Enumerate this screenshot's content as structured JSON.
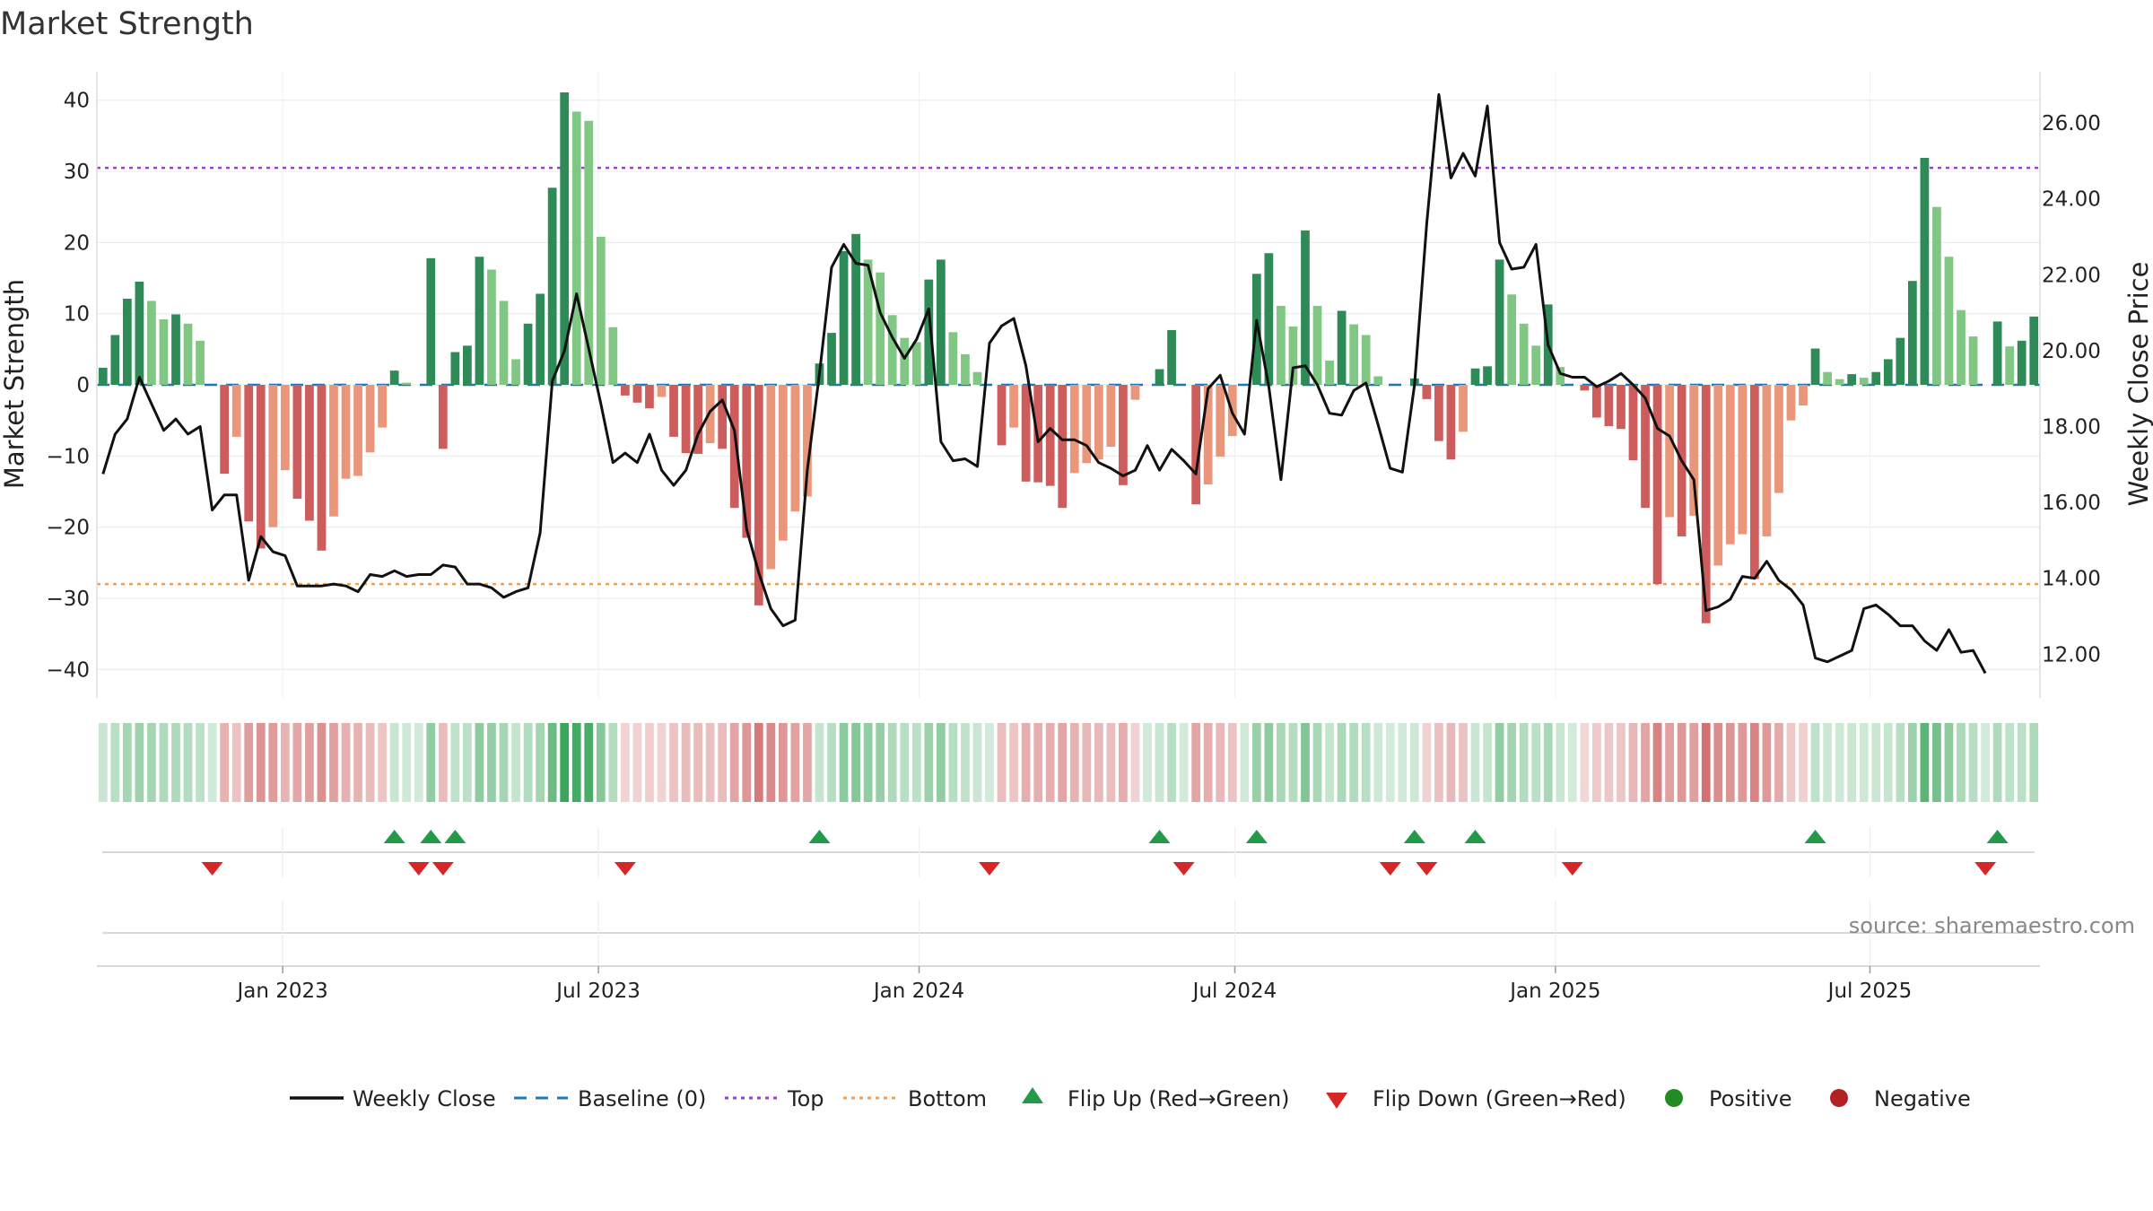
{
  "chart_data": {
    "type": "bar",
    "title": "Market Strength",
    "ylabel": "Market Strength",
    "ylabel_right": "Weekly Close Price",
    "ylim": [
      -44,
      44
    ],
    "ylim_right": [
      10.85,
      27.35
    ],
    "left_ticks": [
      40,
      30,
      20,
      10,
      0,
      -10,
      -20,
      -30,
      -40
    ],
    "left_tick_labels": [
      "40",
      "30",
      "20",
      "10",
      "0",
      "−10",
      "−20",
      "−30",
      "−40"
    ],
    "right_ticks": [
      26,
      24,
      22,
      20,
      18,
      16,
      14,
      12
    ],
    "right_tick_labels": [
      "26.00",
      "24.00",
      "22.00",
      "20.00",
      "18.00",
      "16.00",
      "14.00",
      "12.00"
    ],
    "x_ticks": [
      {
        "label": "Jan 2023",
        "week": 15.3
      },
      {
        "label": "Jul 2023",
        "week": 41.3
      },
      {
        "label": "Jan 2024",
        "week": 67.7
      },
      {
        "label": "Jul 2024",
        "week": 93.7
      },
      {
        "label": "Jan 2025",
        "week": 120.1
      },
      {
        "label": "Jul 2025",
        "week": 146.0
      }
    ],
    "top_line": 30.5,
    "bottom_line": -28,
    "strength": [
      2.4,
      7,
      12.1,
      14.5,
      11.8,
      9.2,
      9.9,
      8.6,
      6.2,
      0,
      -12.5,
      -7.3,
      -19.2,
      -23,
      -20,
      -12,
      -16,
      -19.1,
      -23.3,
      -18.5,
      -13.2,
      -12.8,
      -9.5,
      -6,
      2,
      0.3,
      0,
      17.8,
      -9,
      4.6,
      5.5,
      18,
      16.2,
      11.8,
      3.6,
      8.6,
      12.8,
      27.7,
      41.1,
      38.4,
      37.1,
      20.8,
      8.1,
      -1.5,
      -2.5,
      -3.3,
      -1.7,
      -7.3,
      -9.6,
      -9.7,
      -8.2,
      -9,
      -17.3,
      -21.5,
      -31,
      -25.9,
      -21.9,
      -17.8,
      -15.7,
      3,
      7.3,
      18.8,
      21.2,
      17.6,
      15.8,
      9.8,
      6.6,
      6,
      14.8,
      17.6,
      7.4,
      4.3,
      1.8,
      0,
      -8.5,
      -6,
      -13.6,
      -13.7,
      -14.2,
      -17.3,
      -12.4,
      -11,
      -10.5,
      -8.7,
      -14.1,
      -2.1,
      0,
      2.2,
      7.7,
      0,
      -16.8,
      -14,
      -10.1,
      -7.2,
      0,
      15.6,
      18.5,
      11.1,
      8.2,
      21.7,
      11.1,
      3.4,
      10.4,
      8.5,
      7,
      1.2,
      0,
      0,
      0.9,
      -2,
      -7.9,
      -10.5,
      -6.6,
      2.3,
      2.6,
      17.6,
      12.7,
      8.6,
      5.5,
      11.3,
      2.5,
      0,
      -0.8,
      -4.6,
      -5.8,
      -6.2,
      -10.6,
      -17.3,
      -28,
      -18.6,
      -21.3,
      -18.4,
      -33.5,
      -25.4,
      -22.4,
      -21,
      -27.3,
      -21.3,
      -15.2,
      -5,
      -2.9,
      5.1,
      1.8,
      0.8,
      1.5,
      1,
      1.8,
      3.6,
      6.6,
      14.6,
      31.9,
      25,
      18,
      10.5,
      6.8,
      0,
      8.9,
      5.4,
      6.2,
      9.6
    ],
    "close": [
      16.75,
      17.8,
      18.2,
      19.3,
      18.6,
      17.9,
      18.2,
      17.8,
      18,
      15.8,
      16.2,
      16.2,
      13.95,
      15.1,
      14.7,
      14.6,
      13.8,
      13.8,
      13.8,
      13.85,
      13.8,
      13.65,
      14.1,
      14.05,
      14.2,
      14.05,
      14.1,
      14.1,
      14.35,
      14.3,
      13.85,
      13.85,
      13.75,
      13.5,
      13.65,
      13.75,
      15.2,
      19.2,
      20,
      21.5,
      20.05,
      18.6,
      17.05,
      17.3,
      17.05,
      17.8,
      16.85,
      16.45,
      16.85,
      17.8,
      18.4,
      18.7,
      17.9,
      15.3,
      14.15,
      13.2,
      12.75,
      12.9,
      16.85,
      19.4,
      22.2,
      22.8,
      22.3,
      22.25,
      21,
      20.35,
      19.8,
      20.3,
      21.1,
      17.6,
      17.1,
      17.15,
      16.95,
      20.2,
      20.65,
      20.85,
      19.6,
      17.6,
      17.95,
      17.65,
      17.65,
      17.5,
      17.05,
      16.9,
      16.7,
      16.85,
      17.5,
      16.85,
      17.4,
      17.1,
      16.75,
      19,
      19.35,
      18.35,
      17.8,
      20.8,
      19.05,
      16.6,
      19.55,
      19.6,
      19.1,
      18.35,
      18.3,
      18.95,
      19.15,
      18.05,
      16.9,
      16.8,
      19.1,
      23.35,
      26.75,
      24.55,
      25.2,
      24.6,
      26.45,
      22.85,
      22.15,
      22.2,
      22.8,
      20.15,
      19.4,
      19.3,
      19.3,
      19.05,
      19.2,
      19.4,
      19.1,
      18.75,
      17.95,
      17.75,
      17.1,
      16.6,
      13.15,
      13.25,
      13.45,
      14.05,
      14.0,
      14.45,
      13.95,
      13.7,
      13.3,
      11.9,
      11.8,
      11.95,
      12.1,
      13.2,
      13.3,
      13.05,
      12.75,
      12.75,
      12.35,
      12.1,
      12.65,
      12.05,
      12.1,
      11.5
    ]
  },
  "source": "source: sharemaestro.com",
  "legend": {
    "weekly_close": "Weekly Close",
    "baseline": "Baseline (0)",
    "top": "Top",
    "bottom": "Bottom",
    "flip_up": "Flip Up (Red→Green)",
    "flip_down": "Flip Down (Green→Red)",
    "positive": "Positive",
    "negative": "Negative"
  },
  "colors": {
    "pos_strong": "#2e8b57",
    "pos_light": "#81c784",
    "neg_strong": "#cd5c5c",
    "neg_light": "#e9967a",
    "close_line": "#111111",
    "baseline": "#1f77b4",
    "top_line": "#9b40c8",
    "bottom_line": "#f0a050",
    "flip_up": "#229a4a",
    "flip_down": "#d62728",
    "positive_marker": "#228b22",
    "negative_marker": "#b22222"
  }
}
